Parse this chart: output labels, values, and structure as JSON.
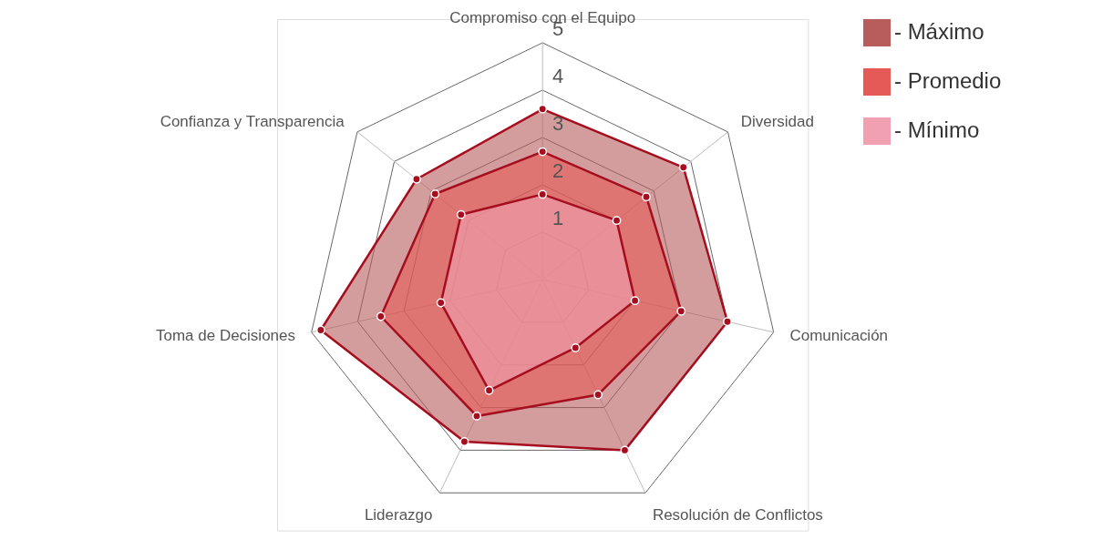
{
  "chart_data": {
    "type": "radar",
    "categories": [
      "Compromiso con el Equipo",
      "Diversidad",
      "Comunicación",
      "Resolución de Conflictos",
      "Liderazgo",
      "Toma de Decisiones",
      "Confianza y Transparencia"
    ],
    "series": [
      {
        "name": "- Máximo",
        "color": "#b85c5c",
        "values": [
          3.6,
          3.8,
          4.0,
          4.0,
          3.8,
          4.8,
          3.4
        ]
      },
      {
        "name": "- Promedio",
        "color": "#e55a57",
        "values": [
          2.7,
          2.8,
          3.0,
          2.7,
          3.2,
          3.5,
          2.9
        ]
      },
      {
        "name": "- Mínimo",
        "color": "#f0a0b0",
        "values": [
          1.8,
          2.0,
          2.0,
          1.6,
          2.6,
          2.2,
          2.2
        ]
      }
    ],
    "ylim": [
      0,
      5
    ],
    "yticks": [
      1,
      2,
      3,
      4,
      5
    ],
    "grid": true,
    "marker": "circle",
    "legend": "right"
  }
}
